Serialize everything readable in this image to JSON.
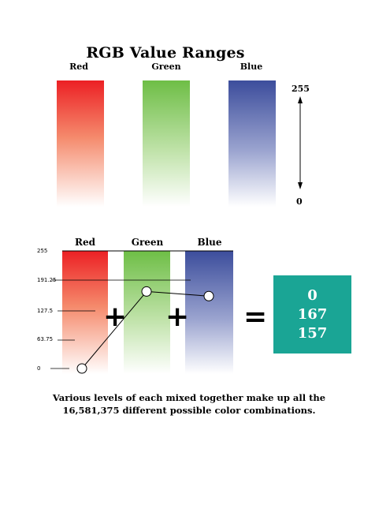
{
  "title": "RGB Value Ranges",
  "top_section": {
    "channels": [
      "Red",
      "Green",
      "Blue"
    ],
    "scale_max": "255",
    "scale_min": "0"
  },
  "bottom_section": {
    "channels": [
      "Red",
      "Green",
      "Blue"
    ],
    "y_ticks": [
      "255",
      "191.25",
      "127.5",
      "63.75",
      "0"
    ],
    "plotted_values": {
      "red": 0,
      "green": 167,
      "blue": 157
    },
    "plus_symbol": "+",
    "equals_symbol": "=",
    "result": [
      "0",
      "167",
      "157"
    ],
    "colors": {
      "red": "#ec2024",
      "green": "#6ebe46",
      "blue": "#3c4d9c",
      "result_box": "#1aa595"
    }
  },
  "caption": {
    "line1": "Various levels of each mixed together make up all the",
    "line2": "16,581,375 different possible color combinations."
  }
}
